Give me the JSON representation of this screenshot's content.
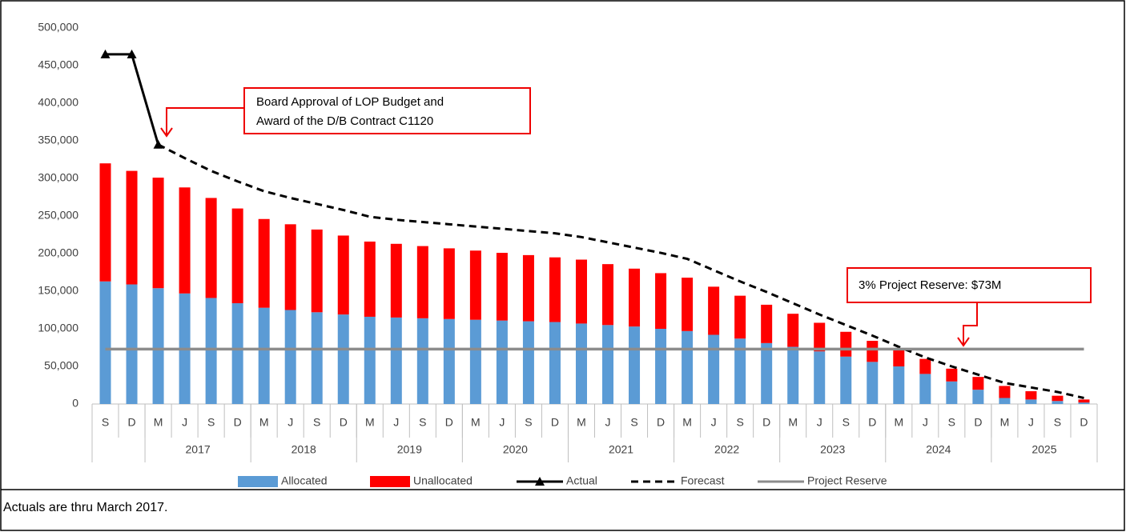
{
  "chart_data": {
    "type": "bar",
    "stacked": true,
    "categories": [
      "S",
      "D",
      "M",
      "J",
      "S",
      "D",
      "M",
      "J",
      "S",
      "D",
      "M",
      "J",
      "S",
      "D",
      "M",
      "J",
      "S",
      "D",
      "M",
      "J",
      "S",
      "D",
      "M",
      "J",
      "S",
      "D",
      "M",
      "J",
      "S",
      "D",
      "M",
      "J",
      "S",
      "D",
      "M",
      "J",
      "S",
      "D"
    ],
    "category_groups": [
      {
        "label": null,
        "size": 2
      },
      {
        "label": "2017",
        "size": 4
      },
      {
        "label": "2018",
        "size": 4
      },
      {
        "label": "2019",
        "size": 4
      },
      {
        "label": "2020",
        "size": 4
      },
      {
        "label": "2021",
        "size": 4
      },
      {
        "label": "2022",
        "size": 4
      },
      {
        "label": "2023",
        "size": 4
      },
      {
        "label": "2024",
        "size": 4
      },
      {
        "label": "2025",
        "size": 4
      }
    ],
    "series": [
      {
        "name": "Allocated",
        "type": "bar",
        "color": "#5b9bd5",
        "values": [
          163000,
          159000,
          154000,
          147000,
          141000,
          134000,
          128000,
          125000,
          122000,
          119000,
          116000,
          115000,
          114000,
          113000,
          112000,
          111000,
          110000,
          109000,
          107000,
          105000,
          103000,
          100000,
          97000,
          92000,
          87000,
          81000,
          76000,
          70000,
          63000,
          56000,
          50000,
          40000,
          30000,
          19000,
          8000,
          6000,
          4000,
          2000
        ]
      },
      {
        "name": "Unallocated",
        "type": "bar",
        "color": "#ff0000",
        "values": [
          157000,
          151000,
          147000,
          141000,
          133000,
          126000,
          118000,
          114000,
          110000,
          105000,
          100000,
          98000,
          96000,
          94000,
          92000,
          90000,
          88000,
          86000,
          85000,
          81000,
          77000,
          74000,
          71000,
          64000,
          57000,
          51000,
          44000,
          38000,
          33000,
          28000,
          22000,
          20000,
          17000,
          17000,
          16000,
          11000,
          7000,
          4000
        ]
      },
      {
        "name": "Actual",
        "type": "line",
        "color": "#000000",
        "marker": "triangle",
        "values": [
          465000,
          465000,
          345000,
          null,
          null,
          null,
          null,
          null,
          null,
          null,
          null,
          null,
          null,
          null,
          null,
          null,
          null,
          null,
          null,
          null,
          null,
          null,
          null,
          null,
          null,
          null,
          null,
          null,
          null,
          null,
          null,
          null,
          null,
          null,
          null,
          null,
          null,
          null
        ]
      },
      {
        "name": "Forecast",
        "type": "line",
        "color": "#000000",
        "dashed": true,
        "values": [
          null,
          null,
          345000,
          327000,
          310000,
          296000,
          283000,
          274000,
          266000,
          258000,
          249000,
          245000,
          242000,
          239000,
          236000,
          233000,
          230000,
          227000,
          222000,
          215000,
          208000,
          201000,
          193000,
          178000,
          163000,
          149000,
          134000,
          119000,
          105000,
          91000,
          76000,
          62000,
          50000,
          39000,
          28000,
          22000,
          16000,
          8000
        ]
      },
      {
        "name": "Project Reserve",
        "type": "line",
        "color": "#8c8c8c",
        "values": [
          73000,
          73000,
          73000,
          73000,
          73000,
          73000,
          73000,
          73000,
          73000,
          73000,
          73000,
          73000,
          73000,
          73000,
          73000,
          73000,
          73000,
          73000,
          73000,
          73000,
          73000,
          73000,
          73000,
          73000,
          73000,
          73000,
          73000,
          73000,
          73000,
          73000,
          73000,
          73000,
          73000,
          73000,
          73000,
          73000,
          73000,
          73000
        ]
      }
    ],
    "ylim": [
      0,
      500000
    ],
    "yticks": [
      0,
      {
        "value": 50000,
        "label": "50,000"
      },
      {
        "value": 100000,
        "label": "100,000"
      },
      {
        "value": 150000,
        "label": "150,000"
      },
      {
        "value": 200000,
        "label": "200,000"
      },
      {
        "value": 250000,
        "label": "250,000"
      },
      {
        "value": 300000,
        "label": "300,000"
      },
      {
        "value": 350000,
        "label": "350,000"
      },
      {
        "value": 400000,
        "label": "400,000"
      },
      {
        "value": 450000,
        "label": "450,000"
      },
      {
        "value": 500000,
        "label": "500,000"
      }
    ],
    "grid": false,
    "legend": "bottom",
    "annotations": [
      "Board Approval of LOP Budget and",
      "Award  of the D/B Contract C1120",
      "3% Project Reserve: $73M"
    ],
    "footnote": "Actuals are thru March 2017."
  }
}
